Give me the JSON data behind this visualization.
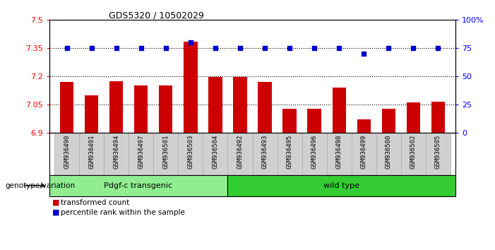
{
  "title": "GDS5320 / 10502029",
  "categories": [
    "GSM936490",
    "GSM936491",
    "GSM936494",
    "GSM936497",
    "GSM936501",
    "GSM936503",
    "GSM936504",
    "GSM936492",
    "GSM936493",
    "GSM936495",
    "GSM936496",
    "GSM936498",
    "GSM936499",
    "GSM936500",
    "GSM936502",
    "GSM936505"
  ],
  "bar_values": [
    7.17,
    7.1,
    7.175,
    7.15,
    7.15,
    7.385,
    7.195,
    7.195,
    7.17,
    7.025,
    7.025,
    7.14,
    6.97,
    7.025,
    7.06,
    7.065
  ],
  "percentile_values": [
    75,
    75,
    75,
    75,
    75,
    80,
    75,
    75,
    75,
    75,
    75,
    75,
    70,
    75,
    75,
    75
  ],
  "bar_color": "#cc0000",
  "percentile_color": "#0000cc",
  "ylim_left": [
    6.9,
    7.5
  ],
  "ylim_right": [
    0,
    100
  ],
  "yticks_left": [
    6.9,
    7.05,
    7.2,
    7.35,
    7.5
  ],
  "yticks_right": [
    0,
    25,
    50,
    75,
    100
  ],
  "grid_lines": [
    7.05,
    7.2,
    7.35
  ],
  "group1_label": "Pdgf-c transgenic",
  "group2_label": "wild type",
  "group1_indices": [
    0,
    1,
    2,
    3,
    4,
    5,
    6
  ],
  "group2_indices": [
    7,
    8,
    9,
    10,
    11,
    12,
    13,
    14,
    15
  ],
  "group1_color": "#90ee90",
  "group2_color": "#33cc33",
  "genotype_label": "genotype/variation",
  "legend_bar_label": "transformed count",
  "legend_dot_label": "percentile rank within the sample",
  "bar_width": 0.55,
  "background_color": "#ffffff",
  "xtick_bg_color": "#d0d0d0",
  "xtick_border_color": "#aaaaaa"
}
